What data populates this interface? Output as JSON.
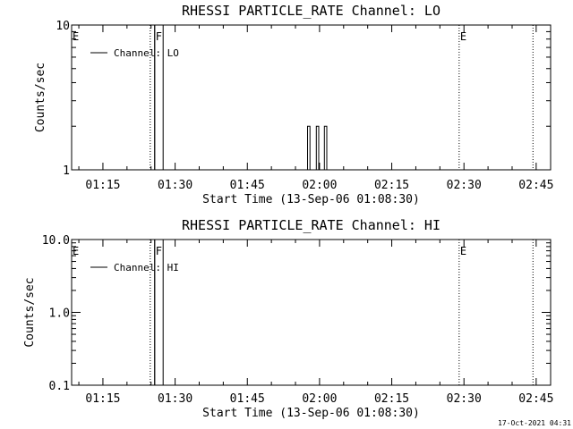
{
  "chart_data": [
    {
      "type": "line",
      "title": "RHESSI PARTICLE_RATE Channel: LO",
      "xlabel": "Start Time (13-Sep-06 01:08:30)",
      "ylabel": "Counts/sec",
      "yscale": "log",
      "ylim": [
        1,
        10
      ],
      "ytick_labels": [
        "1",
        "10"
      ],
      "xlim": [
        "01:08:30",
        "02:48:00"
      ],
      "xtick_labels": [
        "01:15",
        "01:30",
        "01:45",
        "02:00",
        "02:15",
        "02:30",
        "02:45"
      ],
      "legend_position": "top-left",
      "series": [
        {
          "name": "Channel: LO",
          "color": "#000000",
          "x": [
            "01:25:45",
            "01:25:45",
            "01:27:30",
            "01:27:30",
            "01:57:30",
            "01:57:30",
            "01:58:00",
            "01:58:00",
            "01:59:20",
            "01:59:20",
            "01:59:50",
            "01:59:50",
            "02:01:00",
            "02:01:00",
            "02:01:30",
            "02:01:30"
          ],
          "y": [
            1,
            10,
            10,
            1,
            1,
            2,
            2,
            1,
            1,
            2,
            2,
            1,
            1,
            2,
            2,
            1
          ]
        }
      ],
      "annotations": [
        {
          "label": "E",
          "x": "01:08:30",
          "style": "none"
        },
        {
          "label": "",
          "x": "01:24:50",
          "style": "dotted"
        },
        {
          "label": "F",
          "x": "01:25:45",
          "style": "solid"
        },
        {
          "label": "E",
          "x": "02:29:00",
          "style": "dotted"
        },
        {
          "label": "",
          "x": "02:44:20",
          "style": "dotted"
        }
      ]
    },
    {
      "type": "line",
      "title": "RHESSI PARTICLE_RATE Channel: HI",
      "xlabel": "Start Time (13-Sep-06 01:08:30)",
      "ylabel": "Counts/sec",
      "yscale": "log",
      "ylim": [
        0.1,
        10
      ],
      "ytick_labels": [
        "0.1",
        "1.0",
        "10.0"
      ],
      "xlim": [
        "01:08:30",
        "02:48:00"
      ],
      "xtick_labels": [
        "01:15",
        "01:30",
        "01:45",
        "02:00",
        "02:15",
        "02:30",
        "02:45"
      ],
      "legend_position": "top-left",
      "series": [
        {
          "name": "Channel: HI",
          "color": "#000000",
          "x": [
            "01:25:45",
            "01:25:45",
            "01:27:30",
            "01:27:30"
          ],
          "y": [
            0.1,
            10,
            10,
            0.1
          ]
        }
      ],
      "annotations": [
        {
          "label": "E",
          "x": "01:08:30",
          "style": "none"
        },
        {
          "label": "",
          "x": "01:24:50",
          "style": "dotted"
        },
        {
          "label": "F",
          "x": "01:25:45",
          "style": "solid"
        },
        {
          "label": "E",
          "x": "02:29:00",
          "style": "dotted"
        },
        {
          "label": "",
          "x": "02:44:20",
          "style": "dotted"
        }
      ]
    }
  ],
  "footer": {
    "timestamp": "17-Oct-2021 04:31"
  }
}
